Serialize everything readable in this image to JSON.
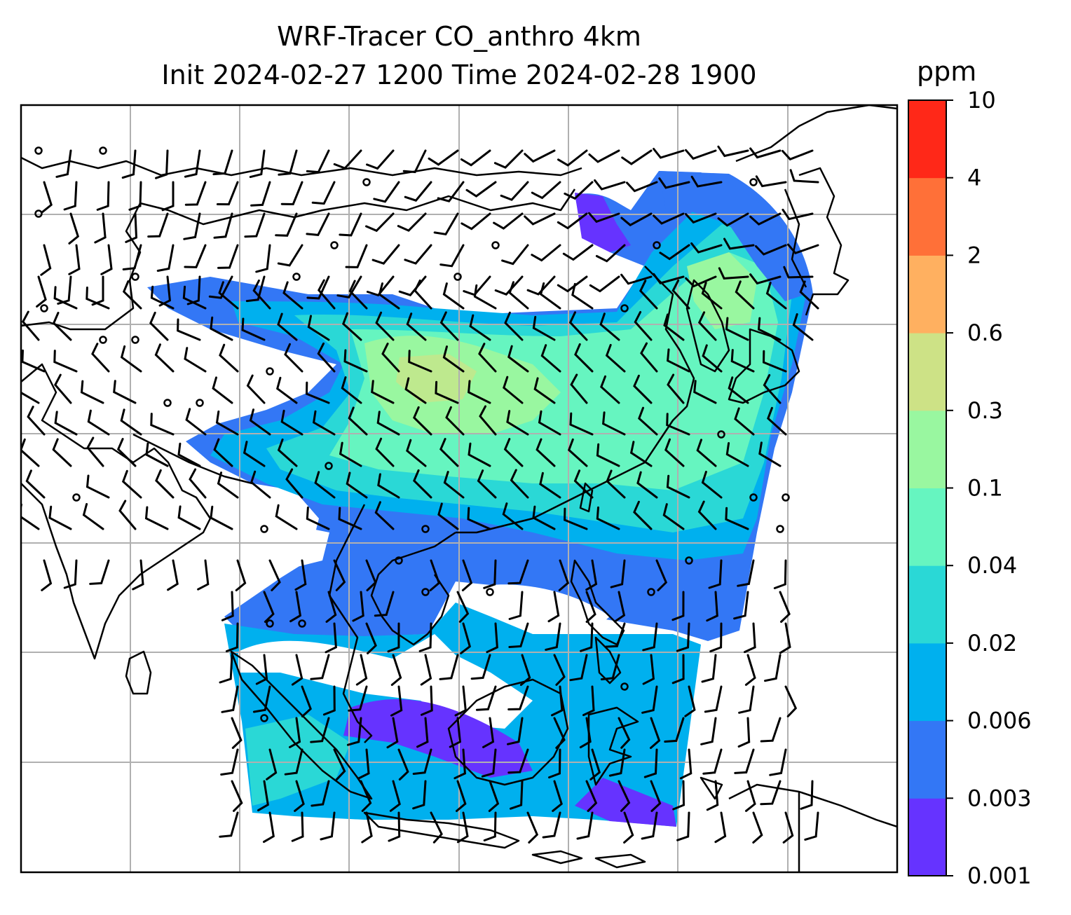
{
  "title": {
    "line1": "WRF-Tracer CO_anthro 4km",
    "line2": "Init 2024-02-27 1200 Time 2024-02-28 1900"
  },
  "colorbar": {
    "unit": "ppm",
    "levels": [
      "0.001",
      "0.003",
      "0.006",
      "0.02",
      "0.04",
      "0.1",
      "0.3",
      "0.6",
      "2",
      "4",
      "10"
    ],
    "colors": [
      "#6633ff",
      "#3377f5",
      "#00b0ee",
      "#2ad8d6",
      "#66f5c0",
      "#99f7a0",
      "#cde286",
      "#ffb060",
      "#ff7038",
      "#ff2818"
    ]
  },
  "map": {
    "gridlines": "on",
    "overlay": "wind barbs"
  }
}
